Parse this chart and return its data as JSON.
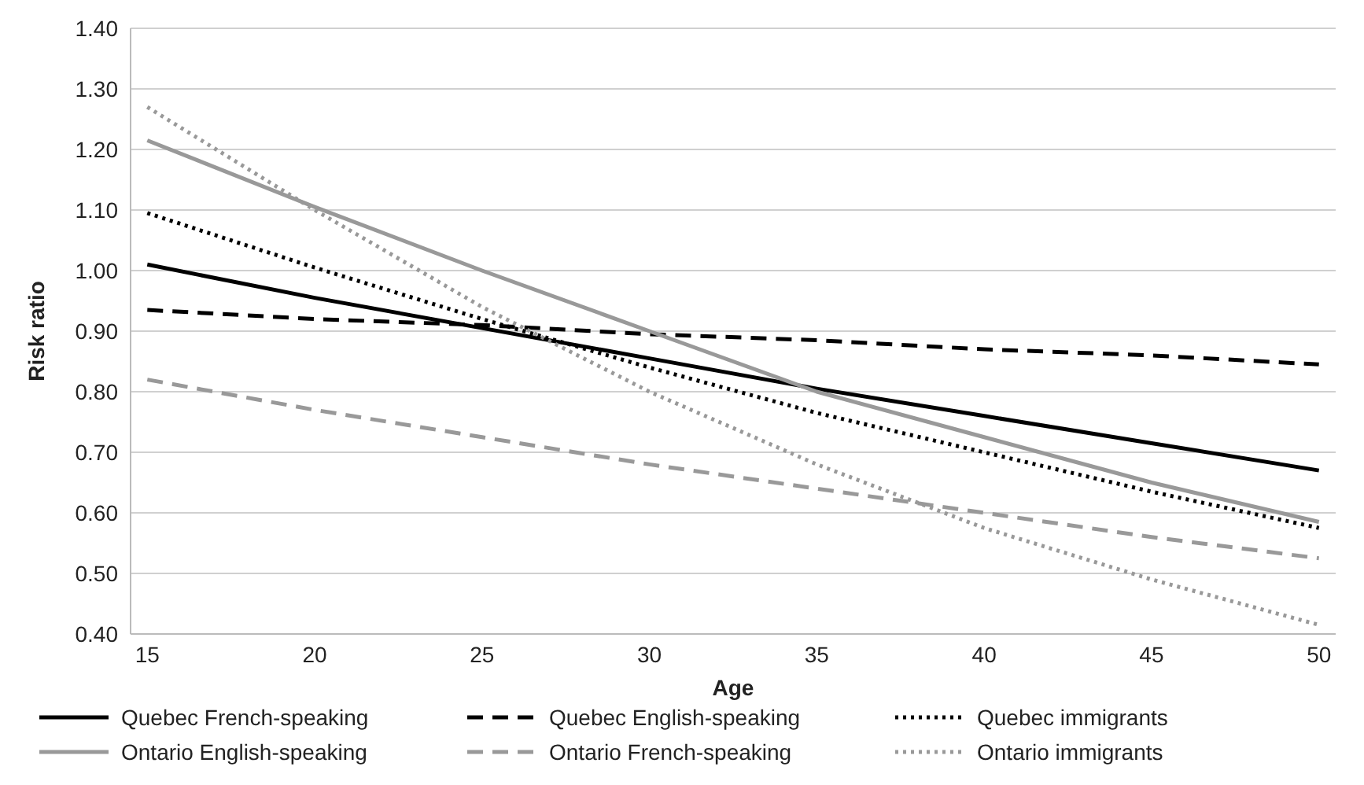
{
  "chart_data": {
    "type": "line",
    "xlabel": "Age",
    "ylabel": "Risk ratio",
    "x": [
      15,
      20,
      25,
      30,
      35,
      40,
      45,
      50
    ],
    "xlim": [
      14.5,
      50.5
    ],
    "xticks": [
      15,
      20,
      25,
      30,
      35,
      40,
      45,
      50
    ],
    "ylim": [
      0.4,
      1.4
    ],
    "yticks": [
      {
        "value": 0.4,
        "label": "0.40"
      },
      {
        "value": 0.5,
        "label": "0.50"
      },
      {
        "value": 0.6,
        "label": "0.60"
      },
      {
        "value": 0.7,
        "label": "0.70"
      },
      {
        "value": 0.8,
        "label": "0.80"
      },
      {
        "value": 0.9,
        "label": "0.90"
      },
      {
        "value": 1.0,
        "label": "1.00"
      },
      {
        "value": 1.1,
        "label": "1.10"
      },
      {
        "value": 1.2,
        "label": "1.20"
      },
      {
        "value": 1.3,
        "label": "1.30"
      },
      {
        "value": 1.4,
        "label": "1.40"
      }
    ],
    "grid": "y",
    "legend": "bottom",
    "marker": "none",
    "series": [
      {
        "name": "Quebec French-speaking",
        "color": "#000000",
        "line_style": "solid",
        "values": [
          1.01,
          0.955,
          0.905,
          0.855,
          0.805,
          0.76,
          0.715,
          0.67
        ]
      },
      {
        "name": "Quebec English-speaking",
        "color": "#000000",
        "line_style": "dashed",
        "values": [
          0.935,
          0.92,
          0.91,
          0.895,
          0.885,
          0.87,
          0.86,
          0.845
        ]
      },
      {
        "name": "Quebec immigrants",
        "color": "#000000",
        "line_style": "dotted",
        "values": [
          1.095,
          1.005,
          0.92,
          0.84,
          0.765,
          0.7,
          0.635,
          0.575
        ]
      },
      {
        "name": "Ontario English-speaking",
        "color": "#999999",
        "line_style": "solid",
        "values": [
          1.215,
          1.105,
          1.0,
          0.9,
          0.8,
          0.725,
          0.65,
          0.585
        ]
      },
      {
        "name": "Ontario French-speaking",
        "color": "#999999",
        "line_style": "dashed",
        "values": [
          0.82,
          0.77,
          0.725,
          0.68,
          0.64,
          0.6,
          0.56,
          0.525
        ]
      },
      {
        "name": "Ontario immigrants",
        "color": "#999999",
        "line_style": "dotted",
        "values": [
          1.27,
          1.1,
          0.94,
          0.8,
          0.68,
          0.575,
          0.49,
          0.415
        ]
      }
    ]
  }
}
